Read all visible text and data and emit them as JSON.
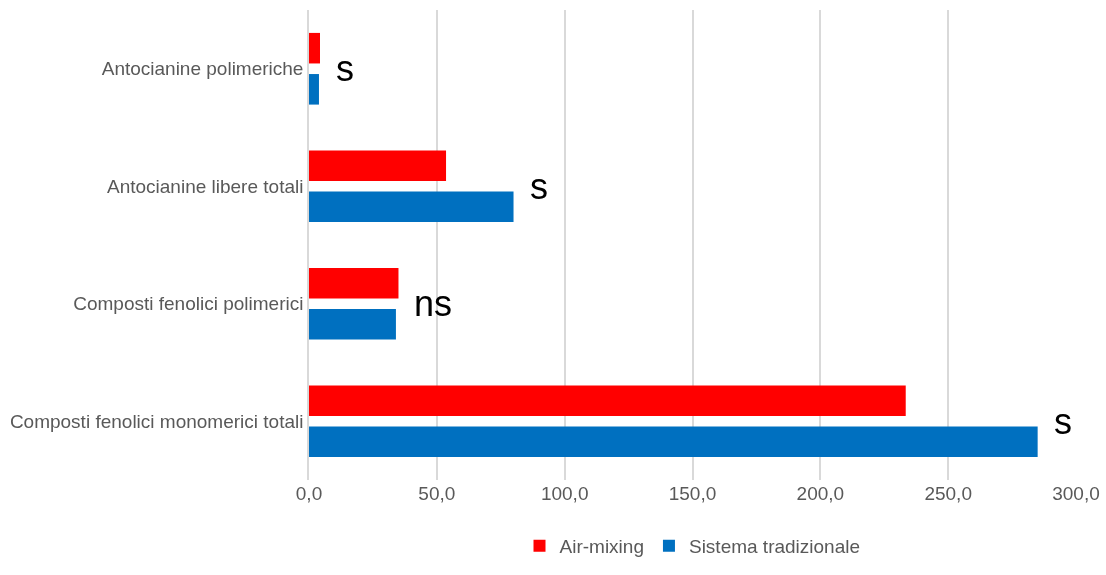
{
  "chart_data": {
    "type": "bar",
    "orientation": "horizontal",
    "categories": [
      "Antocianine polimeriche",
      "Antocianine libere totali",
      "Composti fenolici polimerici",
      "Composti fenolici monomerici totali"
    ],
    "series": [
      {
        "name": "Air-mixing",
        "color": "#ff0000",
        "values": [
          4.3,
          53.6,
          35,
          233.4
        ]
      },
      {
        "name": "Sistema tradizionale",
        "color": "#0070c0",
        "values": [
          3.9,
          80,
          34,
          285
        ]
      }
    ],
    "xlim": [
      0,
      300
    ],
    "xticks": [
      {
        "value": 0,
        "label": "0,0"
      },
      {
        "value": 50,
        "label": "50,0"
      },
      {
        "value": 100,
        "label": "100,0"
      },
      {
        "value": 150,
        "label": "150,0"
      },
      {
        "value": 200,
        "label": "200,0"
      },
      {
        "value": 250,
        "label": "250,0"
      },
      {
        "value": 300,
        "label": "300,0"
      }
    ],
    "grid": "x",
    "legend": "bottom",
    "annotations": [
      "s",
      "s",
      "ns",
      "s"
    ]
  }
}
